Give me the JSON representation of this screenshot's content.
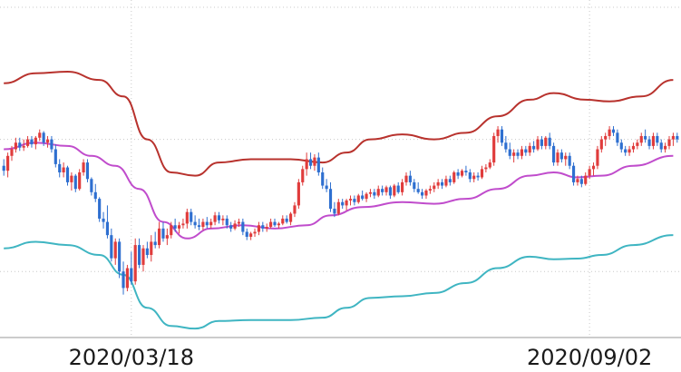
{
  "chart_data": {
    "type": "candlestick",
    "indicator": "bollinger-bands",
    "title": "",
    "xlabel": "",
    "ylabel": "",
    "x_tick_labels": [
      "2020/03/18",
      "2020/09/02"
    ],
    "x_ticks": [
      {
        "label": "2020/03/18",
        "index": 32
      },
      {
        "label": "2020/09/02",
        "index": 147
      }
    ],
    "grid": {
      "horizontal": true,
      "vertical": true,
      "style": "dotted"
    },
    "ylim": [
      0,
      100
    ],
    "colors": {
      "up": "#e03c3c",
      "down": "#2e6fd0",
      "upper_band": "#b8322d",
      "middle_band": "#c04ccc",
      "lower_band": "#3fb5c2",
      "grid": "#c8c8c8",
      "baseline": "#999999"
    },
    "series": [
      {
        "role": "upper-band",
        "values": [
          [
            0,
            77
          ],
          [
            8,
            80
          ],
          [
            16,
            80.5
          ],
          [
            24,
            78
          ],
          [
            30,
            73
          ],
          [
            36,
            60
          ],
          [
            42,
            50
          ],
          [
            48,
            49
          ],
          [
            54,
            53
          ],
          [
            62,
            54
          ],
          [
            72,
            54
          ],
          [
            80,
            53
          ],
          [
            86,
            56
          ],
          [
            92,
            60
          ],
          [
            100,
            61.5
          ],
          [
            108,
            60
          ],
          [
            116,
            62
          ],
          [
            124,
            67
          ],
          [
            132,
            72
          ],
          [
            138,
            74
          ],
          [
            146,
            72
          ],
          [
            152,
            71.5
          ],
          [
            160,
            73
          ],
          [
            168,
            78
          ]
        ]
      },
      {
        "role": "middle-band",
        "values": [
          [
            0,
            57
          ],
          [
            8,
            59
          ],
          [
            16,
            58
          ],
          [
            22,
            55
          ],
          [
            28,
            52
          ],
          [
            34,
            45
          ],
          [
            40,
            35
          ],
          [
            46,
            30
          ],
          [
            52,
            33
          ],
          [
            60,
            34
          ],
          [
            68,
            33
          ],
          [
            76,
            34
          ],
          [
            82,
            37
          ],
          [
            90,
            39.5
          ],
          [
            100,
            41
          ],
          [
            108,
            40.5
          ],
          [
            116,
            42
          ],
          [
            124,
            45
          ],
          [
            132,
            49
          ],
          [
            138,
            50
          ],
          [
            144,
            48.5
          ],
          [
            150,
            49
          ],
          [
            158,
            52
          ],
          [
            168,
            55
          ]
        ]
      },
      {
        "role": "lower-band",
        "values": [
          [
            0,
            27
          ],
          [
            8,
            29
          ],
          [
            16,
            28
          ],
          [
            24,
            25
          ],
          [
            30,
            19
          ],
          [
            36,
            9
          ],
          [
            42,
            3.5
          ],
          [
            48,
            2.7
          ],
          [
            54,
            5
          ],
          [
            62,
            5.3
          ],
          [
            72,
            5.3
          ],
          [
            80,
            6
          ],
          [
            86,
            9
          ],
          [
            92,
            12
          ],
          [
            100,
            12.5
          ],
          [
            108,
            13.5
          ],
          [
            116,
            16.5
          ],
          [
            124,
            21
          ],
          [
            132,
            24.5
          ],
          [
            138,
            23.7
          ],
          [
            144,
            23.9
          ],
          [
            150,
            25
          ],
          [
            158,
            28
          ],
          [
            168,
            31
          ]
        ]
      }
    ],
    "candles": [
      {
        "o": 52,
        "h": 54,
        "l": 49,
        "c": 50.5
      },
      {
        "o": 50.5,
        "h": 56,
        "l": 48.5,
        "c": 55
      },
      {
        "o": 55,
        "h": 58,
        "l": 53.5,
        "c": 57
      },
      {
        "o": 57,
        "h": 60.5,
        "l": 56,
        "c": 59
      },
      {
        "o": 59,
        "h": 60.5,
        "l": 56.5,
        "c": 57.5
      },
      {
        "o": 57.5,
        "h": 60,
        "l": 56.5,
        "c": 58
      },
      {
        "o": 58,
        "h": 61,
        "l": 57.5,
        "c": 60
      },
      {
        "o": 60,
        "h": 61,
        "l": 57.5,
        "c": 58.5
      },
      {
        "o": 58.5,
        "h": 61,
        "l": 57,
        "c": 60.5
      },
      {
        "o": 60.5,
        "h": 63,
        "l": 59.5,
        "c": 62
      },
      {
        "o": 62,
        "h": 62.5,
        "l": 58,
        "c": 59
      },
      {
        "o": 59,
        "h": 61,
        "l": 57.5,
        "c": 60
      },
      {
        "o": 60,
        "h": 61,
        "l": 56,
        "c": 57
      },
      {
        "o": 57,
        "h": 58.5,
        "l": 51.5,
        "c": 52.5
      },
      {
        "o": 52.5,
        "h": 54,
        "l": 48.5,
        "c": 50
      },
      {
        "o": 50,
        "h": 53,
        "l": 48.5,
        "c": 51.5
      },
      {
        "o": 51.5,
        "h": 52,
        "l": 46,
        "c": 47
      },
      {
        "o": 47,
        "h": 50,
        "l": 44.5,
        "c": 49
      },
      {
        "o": 49,
        "h": 49.5,
        "l": 44,
        "c": 45
      },
      {
        "o": 45,
        "h": 51,
        "l": 44.5,
        "c": 50
      },
      {
        "o": 50,
        "h": 54,
        "l": 49,
        "c": 53
      },
      {
        "o": 53,
        "h": 54,
        "l": 47,
        "c": 48
      },
      {
        "o": 48,
        "h": 48.5,
        "l": 43,
        "c": 44
      },
      {
        "o": 44,
        "h": 46.5,
        "l": 41,
        "c": 42
      },
      {
        "o": 42,
        "h": 42.5,
        "l": 35,
        "c": 36
      },
      {
        "o": 36,
        "h": 38,
        "l": 33,
        "c": 35
      },
      {
        "o": 35,
        "h": 40,
        "l": 30,
        "c": 31
      },
      {
        "o": 31,
        "h": 33,
        "l": 23,
        "c": 24
      },
      {
        "o": 24,
        "h": 30,
        "l": 22,
        "c": 29
      },
      {
        "o": 29,
        "h": 30,
        "l": 18,
        "c": 20
      },
      {
        "o": 20,
        "h": 23,
        "l": 13,
        "c": 15
      },
      {
        "o": 15,
        "h": 22,
        "l": 14,
        "c": 21
      },
      {
        "o": 21,
        "h": 26,
        "l": 16,
        "c": 17
      },
      {
        "o": 17,
        "h": 30,
        "l": 16,
        "c": 28
      },
      {
        "o": 28,
        "h": 30,
        "l": 21,
        "c": 22
      },
      {
        "o": 22,
        "h": 28,
        "l": 20,
        "c": 27
      },
      {
        "o": 27,
        "h": 29,
        "l": 24,
        "c": 25
      },
      {
        "o": 25,
        "h": 31,
        "l": 23,
        "c": 29
      },
      {
        "o": 29,
        "h": 32,
        "l": 27,
        "c": 28
      },
      {
        "o": 28,
        "h": 35,
        "l": 27,
        "c": 33
      },
      {
        "o": 33,
        "h": 35,
        "l": 29,
        "c": 30
      },
      {
        "o": 30,
        "h": 33,
        "l": 28,
        "c": 31
      },
      {
        "o": 31,
        "h": 35,
        "l": 30,
        "c": 34
      },
      {
        "o": 34,
        "h": 36,
        "l": 32,
        "c": 33
      },
      {
        "o": 33,
        "h": 35,
        "l": 31.5,
        "c": 34
      },
      {
        "o": 34,
        "h": 36,
        "l": 33,
        "c": 34.5
      },
      {
        "o": 34.5,
        "h": 39,
        "l": 33,
        "c": 38
      },
      {
        "o": 38,
        "h": 39,
        "l": 34,
        "c": 35
      },
      {
        "o": 35,
        "h": 37,
        "l": 33,
        "c": 34
      },
      {
        "o": 34,
        "h": 36,
        "l": 32.5,
        "c": 33.5
      },
      {
        "o": 33.5,
        "h": 36,
        "l": 32.5,
        "c": 35
      },
      {
        "o": 35,
        "h": 36.5,
        "l": 33,
        "c": 34
      },
      {
        "o": 34,
        "h": 36,
        "l": 33,
        "c": 35
      },
      {
        "o": 35,
        "h": 38,
        "l": 34,
        "c": 37
      },
      {
        "o": 37,
        "h": 38,
        "l": 34.5,
        "c": 35.5
      },
      {
        "o": 35.5,
        "h": 37,
        "l": 34,
        "c": 36
      },
      {
        "o": 36,
        "h": 37,
        "l": 33,
        "c": 34
      },
      {
        "o": 34,
        "h": 35,
        "l": 32,
        "c": 33
      },
      {
        "o": 33,
        "h": 35.5,
        "l": 32.5,
        "c": 34.5
      },
      {
        "o": 34.5,
        "h": 36,
        "l": 33.5,
        "c": 35
      },
      {
        "o": 35,
        "h": 36,
        "l": 31,
        "c": 32
      },
      {
        "o": 32,
        "h": 33,
        "l": 29.5,
        "c": 30.5
      },
      {
        "o": 30.5,
        "h": 32,
        "l": 29.5,
        "c": 31.5
      },
      {
        "o": 31.5,
        "h": 33,
        "l": 30.5,
        "c": 32
      },
      {
        "o": 32,
        "h": 35,
        "l": 31,
        "c": 34
      },
      {
        "o": 34,
        "h": 35,
        "l": 32,
        "c": 33
      },
      {
        "o": 33,
        "h": 34.5,
        "l": 32,
        "c": 33.5
      },
      {
        "o": 33.5,
        "h": 36,
        "l": 33,
        "c": 35
      },
      {
        "o": 35,
        "h": 36,
        "l": 33.5,
        "c": 34
      },
      {
        "o": 34,
        "h": 35,
        "l": 33,
        "c": 34.5
      },
      {
        "o": 34.5,
        "h": 37,
        "l": 34,
        "c": 36
      },
      {
        "o": 36,
        "h": 37,
        "l": 34.5,
        "c": 35
      },
      {
        "o": 35,
        "h": 38,
        "l": 34,
        "c": 37.5
      },
      {
        "o": 37.5,
        "h": 41,
        "l": 36.5,
        "c": 40
      },
      {
        "o": 40,
        "h": 48,
        "l": 39,
        "c": 47
      },
      {
        "o": 47,
        "h": 52,
        "l": 46,
        "c": 51
      },
      {
        "o": 51,
        "h": 56,
        "l": 49,
        "c": 54
      },
      {
        "o": 54,
        "h": 56,
        "l": 51,
        "c": 52
      },
      {
        "o": 52,
        "h": 55.5,
        "l": 50.5,
        "c": 54.5
      },
      {
        "o": 54.5,
        "h": 56,
        "l": 49,
        "c": 50
      },
      {
        "o": 50,
        "h": 51.5,
        "l": 45,
        "c": 46
      },
      {
        "o": 46,
        "h": 48,
        "l": 44,
        "c": 45
      },
      {
        "o": 45,
        "h": 47,
        "l": 38,
        "c": 39
      },
      {
        "o": 39,
        "h": 41,
        "l": 36.5,
        "c": 37.5
      },
      {
        "o": 37.5,
        "h": 42,
        "l": 37,
        "c": 41
      },
      {
        "o": 41,
        "h": 42,
        "l": 39,
        "c": 40
      },
      {
        "o": 40,
        "h": 42,
        "l": 38.5,
        "c": 41.5
      },
      {
        "o": 41.5,
        "h": 43,
        "l": 40,
        "c": 42
      },
      {
        "o": 42,
        "h": 43,
        "l": 40,
        "c": 41
      },
      {
        "o": 41,
        "h": 43.5,
        "l": 40.5,
        "c": 43
      },
      {
        "o": 43,
        "h": 44.5,
        "l": 41.5,
        "c": 42
      },
      {
        "o": 42,
        "h": 44,
        "l": 41,
        "c": 43.5
      },
      {
        "o": 43.5,
        "h": 45,
        "l": 42.5,
        "c": 44
      },
      {
        "o": 44,
        "h": 45,
        "l": 42,
        "c": 43
      },
      {
        "o": 43,
        "h": 46,
        "l": 42.5,
        "c": 45
      },
      {
        "o": 45,
        "h": 46,
        "l": 43,
        "c": 44
      },
      {
        "o": 44,
        "h": 46,
        "l": 43,
        "c": 45.5
      },
      {
        "o": 45.5,
        "h": 46,
        "l": 42,
        "c": 43
      },
      {
        "o": 43,
        "h": 46.5,
        "l": 42.5,
        "c": 46
      },
      {
        "o": 46,
        "h": 47,
        "l": 43.5,
        "c": 44
      },
      {
        "o": 44,
        "h": 48,
        "l": 43,
        "c": 47
      },
      {
        "o": 47,
        "h": 50,
        "l": 46,
        "c": 49
      },
      {
        "o": 49,
        "h": 50.5,
        "l": 46,
        "c": 47
      },
      {
        "o": 47,
        "h": 48,
        "l": 44,
        "c": 45
      },
      {
        "o": 45,
        "h": 47,
        "l": 43.5,
        "c": 44
      },
      {
        "o": 44,
        "h": 45,
        "l": 42,
        "c": 43
      },
      {
        "o": 43,
        "h": 45,
        "l": 42,
        "c": 44.5
      },
      {
        "o": 44.5,
        "h": 46,
        "l": 43.5,
        "c": 45
      },
      {
        "o": 45,
        "h": 47,
        "l": 44,
        "c": 46
      },
      {
        "o": 46,
        "h": 48,
        "l": 45,
        "c": 47
      },
      {
        "o": 47,
        "h": 48,
        "l": 45,
        "c": 46
      },
      {
        "o": 46,
        "h": 49,
        "l": 45.5,
        "c": 48
      },
      {
        "o": 48,
        "h": 49,
        "l": 46,
        "c": 47
      },
      {
        "o": 47,
        "h": 50.5,
        "l": 46.5,
        "c": 50
      },
      {
        "o": 50,
        "h": 51,
        "l": 48,
        "c": 49
      },
      {
        "o": 49,
        "h": 51,
        "l": 48.5,
        "c": 50.5
      },
      {
        "o": 50.5,
        "h": 52,
        "l": 49,
        "c": 50
      },
      {
        "o": 50,
        "h": 51,
        "l": 47,
        "c": 48
      },
      {
        "o": 48,
        "h": 50,
        "l": 47,
        "c": 49
      },
      {
        "o": 49,
        "h": 50,
        "l": 47.5,
        "c": 48.5
      },
      {
        "o": 48.5,
        "h": 52,
        "l": 48,
        "c": 51
      },
      {
        "o": 51,
        "h": 52.5,
        "l": 50,
        "c": 51.5
      },
      {
        "o": 51.5,
        "h": 54,
        "l": 51,
        "c": 53
      },
      {
        "o": 53,
        "h": 62,
        "l": 52,
        "c": 61
      },
      {
        "o": 61,
        "h": 64,
        "l": 59,
        "c": 63
      },
      {
        "o": 63,
        "h": 64,
        "l": 58,
        "c": 59
      },
      {
        "o": 59,
        "h": 61,
        "l": 56,
        "c": 57
      },
      {
        "o": 57,
        "h": 59,
        "l": 54,
        "c": 55
      },
      {
        "o": 55,
        "h": 57,
        "l": 53,
        "c": 56
      },
      {
        "o": 56,
        "h": 57,
        "l": 54,
        "c": 55
      },
      {
        "o": 55,
        "h": 58,
        "l": 54,
        "c": 57
      },
      {
        "o": 57,
        "h": 58,
        "l": 55,
        "c": 56
      },
      {
        "o": 56,
        "h": 59,
        "l": 55,
        "c": 58
      },
      {
        "o": 58,
        "h": 59.5,
        "l": 56,
        "c": 57
      },
      {
        "o": 57,
        "h": 61,
        "l": 56.5,
        "c": 60
      },
      {
        "o": 60,
        "h": 61,
        "l": 57,
        "c": 58
      },
      {
        "o": 58,
        "h": 61,
        "l": 57,
        "c": 60.5
      },
      {
        "o": 60.5,
        "h": 62,
        "l": 57,
        "c": 58
      },
      {
        "o": 58,
        "h": 59,
        "l": 52,
        "c": 53
      },
      {
        "o": 53,
        "h": 57,
        "l": 52,
        "c": 56
      },
      {
        "o": 56,
        "h": 57,
        "l": 53,
        "c": 54
      },
      {
        "o": 54,
        "h": 56,
        "l": 52,
        "c": 55
      },
      {
        "o": 55,
        "h": 56,
        "l": 51,
        "c": 52
      },
      {
        "o": 52,
        "h": 53,
        "l": 46,
        "c": 47
      },
      {
        "o": 47,
        "h": 49,
        "l": 46,
        "c": 48
      },
      {
        "o": 48,
        "h": 49,
        "l": 45.5,
        "c": 46.5
      },
      {
        "o": 46.5,
        "h": 50,
        "l": 46,
        "c": 49
      },
      {
        "o": 49,
        "h": 52,
        "l": 48,
        "c": 51
      },
      {
        "o": 51,
        "h": 53,
        "l": 49,
        "c": 52
      },
      {
        "o": 52,
        "h": 58,
        "l": 51,
        "c": 57
      },
      {
        "o": 57,
        "h": 61,
        "l": 56,
        "c": 60
      },
      {
        "o": 60,
        "h": 62,
        "l": 58,
        "c": 61
      },
      {
        "o": 61,
        "h": 64,
        "l": 60,
        "c": 63
      },
      {
        "o": 63,
        "h": 64,
        "l": 61,
        "c": 62
      },
      {
        "o": 62,
        "h": 63,
        "l": 58,
        "c": 59
      },
      {
        "o": 59,
        "h": 60,
        "l": 56,
        "c": 57
      },
      {
        "o": 57,
        "h": 58,
        "l": 55,
        "c": 56
      },
      {
        "o": 56,
        "h": 58,
        "l": 55,
        "c": 57
      },
      {
        "o": 57,
        "h": 59,
        "l": 56,
        "c": 58
      },
      {
        "o": 58,
        "h": 60,
        "l": 57,
        "c": 59
      },
      {
        "o": 59,
        "h": 62,
        "l": 58,
        "c": 61
      },
      {
        "o": 61,
        "h": 63,
        "l": 59,
        "c": 60
      },
      {
        "o": 60,
        "h": 61,
        "l": 57,
        "c": 58
      },
      {
        "o": 58,
        "h": 62,
        "l": 57,
        "c": 61
      },
      {
        "o": 61,
        "h": 62,
        "l": 58,
        "c": 59
      },
      {
        "o": 59,
        "h": 60,
        "l": 56,
        "c": 57
      },
      {
        "o": 57,
        "h": 59,
        "l": 56,
        "c": 58
      },
      {
        "o": 58,
        "h": 61,
        "l": 57,
        "c": 60
      },
      {
        "o": 60,
        "h": 62,
        "l": 58,
        "c": 61
      },
      {
        "o": 61,
        "h": 62,
        "l": 59,
        "c": 60
      }
    ]
  }
}
